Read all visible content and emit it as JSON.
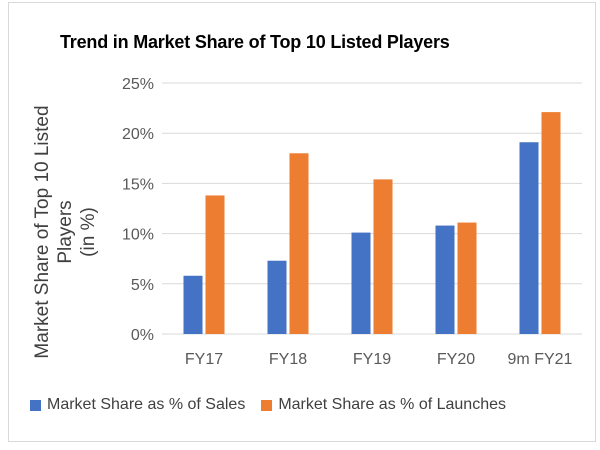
{
  "chart_data": {
    "type": "bar",
    "title": "Trend in Market Share of Top 10 Listed Players",
    "ylabel": "Market Share of Top 10 Listed Players (in %)",
    "ylabel_lines": [
      "Market Share of Top 10 Listed",
      "Players",
      "(in %)"
    ],
    "xlabel": "",
    "categories": [
      "FY17",
      "FY18",
      "FY19",
      "FY20",
      "9m FY21"
    ],
    "ylim": [
      0,
      25
    ],
    "yticks": [
      0,
      5,
      10,
      15,
      20,
      25
    ],
    "ytick_labels": [
      "0%",
      "5%",
      "10%",
      "15%",
      "20%",
      "25%"
    ],
    "grid": true,
    "legend_position": "bottom",
    "series": [
      {
        "name": "Market Share as % of Sales",
        "color": "#4472c4",
        "values": [
          5.8,
          7.3,
          10.1,
          10.8,
          19.1
        ]
      },
      {
        "name": "Market Share as % of Launches",
        "color": "#ed7d31",
        "values": [
          13.8,
          18.0,
          15.4,
          11.1,
          22.1
        ]
      }
    ]
  }
}
